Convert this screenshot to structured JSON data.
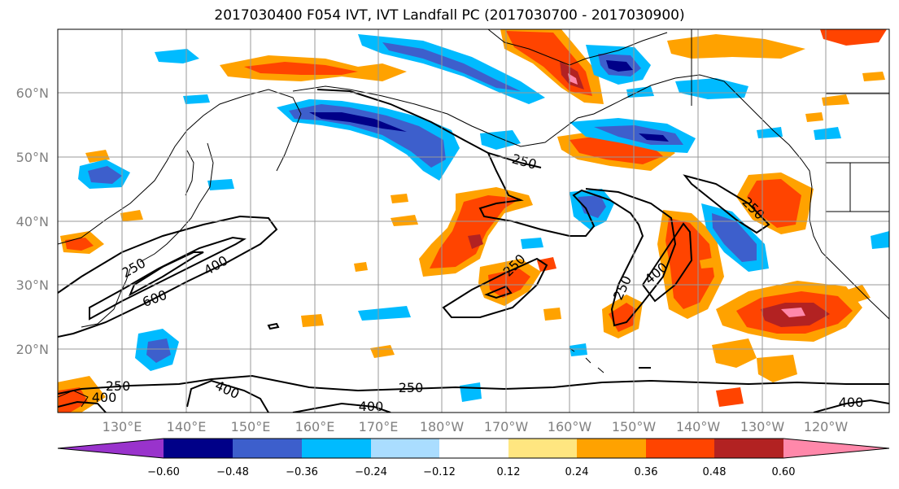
{
  "title": "2017030400 F054 IVT, IVT Landfall PC (2017030700 - 2017030900)",
  "latitude_labels": [
    "60°N",
    "50°N",
    "40°N",
    "30°N",
    "20°N"
  ],
  "longitude_labels": [
    "130°E",
    "140°E",
    "150°E",
    "160°E",
    "170°E",
    "180°W",
    "170°W",
    "160°W",
    "150°W",
    "140°W",
    "130°W",
    "120°W"
  ],
  "contour_labels": [
    "250",
    "250",
    "250",
    "250",
    "250",
    "250",
    "250",
    "400",
    "400",
    "400",
    "400",
    "400",
    "400",
    "600"
  ],
  "colorbar": {
    "colors": [
      "#9933cc",
      "#000088",
      "#3d5fcc",
      "#00bbff",
      "#aaddff",
      "#ffffff",
      "#ffe680",
      "#ffa200",
      "#ff4400",
      "#b22222",
      "#ff88aa"
    ],
    "tick_labels": [
      "−0.60",
      "−0.48",
      "−0.36",
      "−0.24",
      "−0.12",
      "0.12",
      "0.24",
      "0.36",
      "0.48",
      "0.60"
    ]
  }
}
